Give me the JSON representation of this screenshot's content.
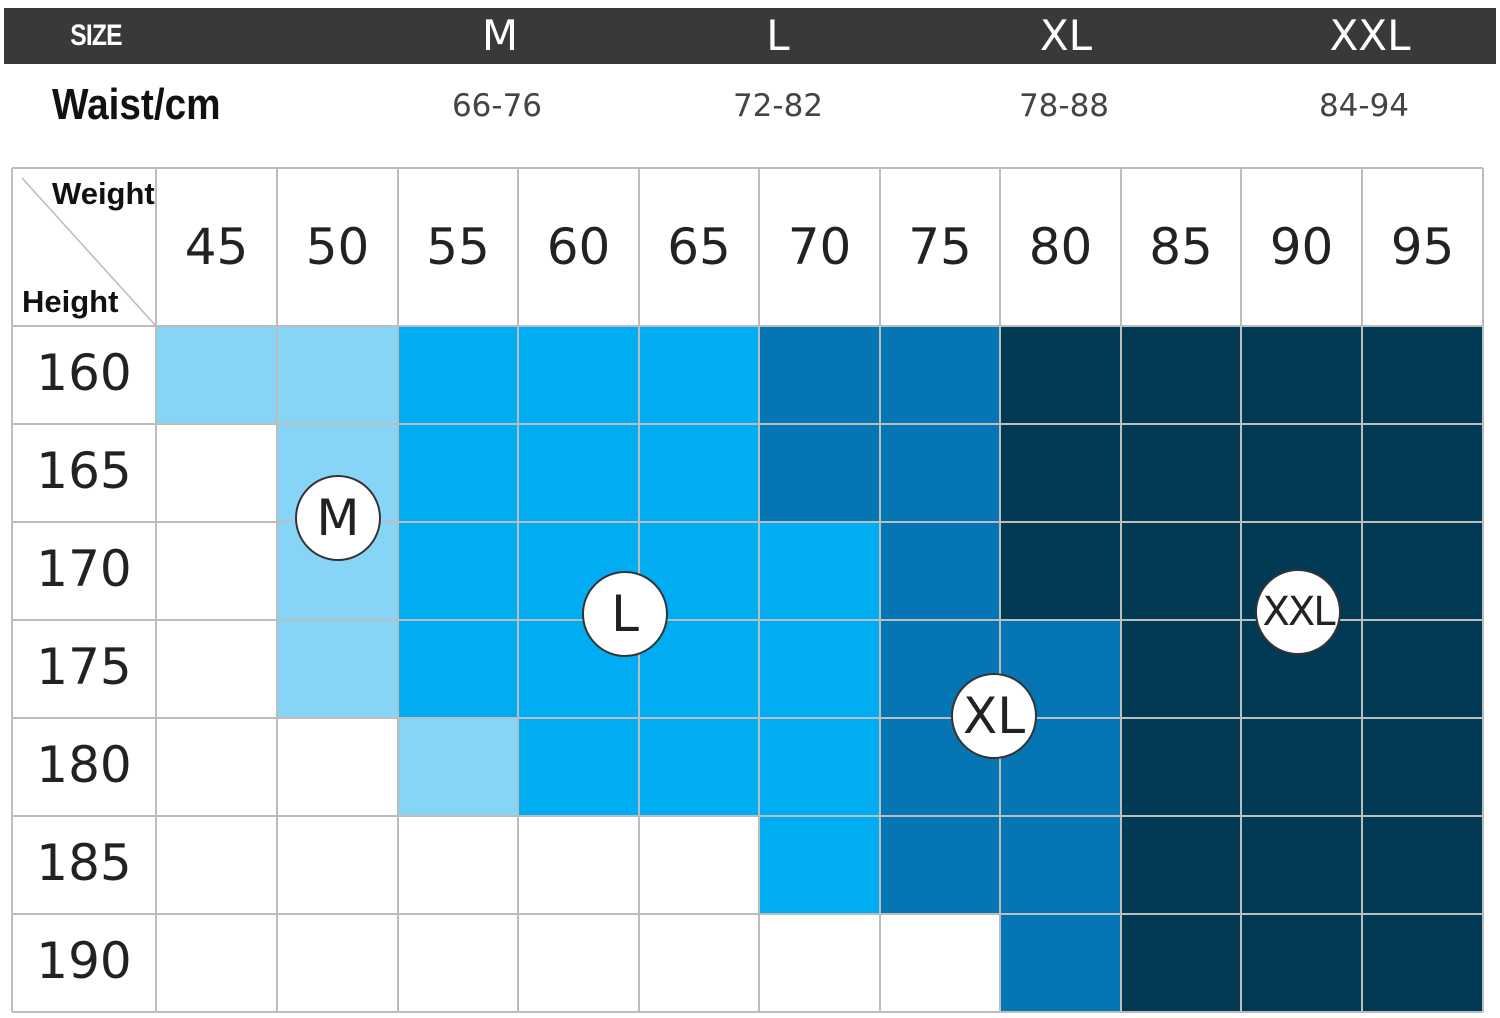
{
  "size_header": {
    "label": "SIZE",
    "sizes": [
      "M",
      "L",
      "XL",
      "XXL"
    ]
  },
  "waist": {
    "label": "Waist/cm",
    "values": [
      "66-76",
      "72-82",
      "78-88",
      "84-94"
    ]
  },
  "chart_data": {
    "type": "heatmap",
    "corner_top": "Weight",
    "corner_bottom": "Height",
    "x": [
      "45",
      "50",
      "55",
      "60",
      "65",
      "70",
      "75",
      "80",
      "85",
      "90",
      "95"
    ],
    "y": [
      "160",
      "165",
      "170",
      "175",
      "180",
      "185",
      "190"
    ],
    "size_colors": {
      "M": "#86d5f7",
      "L": "#00adf2",
      "XL": "#0576b3",
      "XXL": "#023a56"
    },
    "grid": [
      [
        "M",
        "M",
        "L",
        "L",
        "L",
        "XL",
        "XL",
        "XXL",
        "XXL",
        "XXL",
        "XXL"
      ],
      [
        "",
        "M",
        "L",
        "L",
        "L",
        "XL",
        "XL",
        "XXL",
        "XXL",
        "XXL",
        "XXL"
      ],
      [
        "",
        "M",
        "L",
        "L",
        "L",
        "L",
        "XL",
        "XXL",
        "XXL",
        "XXL",
        "XXL"
      ],
      [
        "",
        "M",
        "L",
        "L",
        "L",
        "L",
        "XL",
        "XL",
        "XXL",
        "XXL",
        "XXL"
      ],
      [
        "",
        "",
        "M",
        "L",
        "L",
        "L",
        "XL",
        "XL",
        "XXL",
        "XXL",
        "XXL"
      ],
      [
        "",
        "",
        "",
        "",
        "",
        "L",
        "XL",
        "XL",
        "XXL",
        "XXL",
        "XXL"
      ],
      [
        "",
        "",
        "",
        "",
        "",
        "",
        "",
        "XL",
        "XXL",
        "XXL",
        "XXL"
      ]
    ],
    "badges": [
      "M",
      "L",
      "XL",
      "XXL"
    ]
  }
}
